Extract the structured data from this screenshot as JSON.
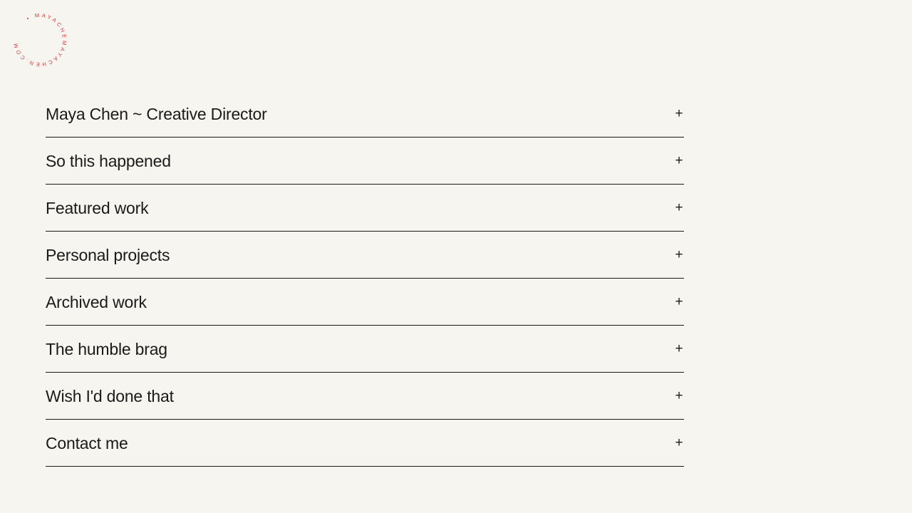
{
  "logo": {
    "text": "• MAYACHEMAYACHEN.COM",
    "color": "#d63a3a"
  },
  "sections": [
    {
      "label": "Maya Chen ~ Creative Director",
      "icon": "plus-icon"
    },
    {
      "label": "So this happened",
      "icon": "plus-icon"
    },
    {
      "label": "Featured work",
      "icon": "plus-icon"
    },
    {
      "label": "Personal projects",
      "icon": "plus-icon"
    },
    {
      "label": "Archived work",
      "icon": "plus-icon"
    },
    {
      "label": "The humble brag",
      "icon": "plus-icon"
    },
    {
      "label": "Wish I'd done that",
      "icon": "plus-icon"
    },
    {
      "label": "Contact me",
      "icon": "plus-icon"
    }
  ],
  "expand_symbol": "+"
}
